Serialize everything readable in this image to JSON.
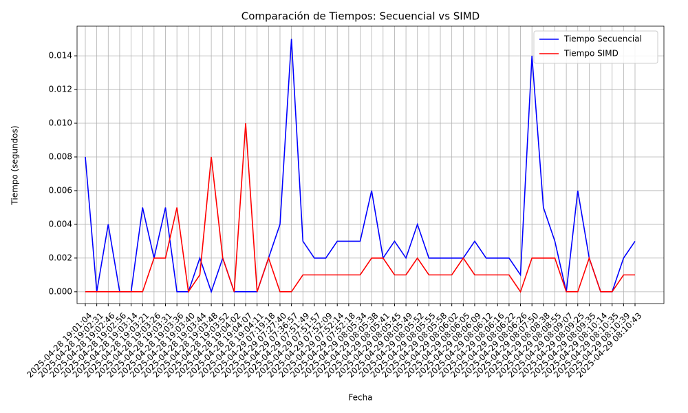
{
  "chart_data": {
    "type": "line",
    "title": "Comparación de Tiempos: Secuencial vs SIMD",
    "x_label": "Fecha",
    "y_label": "Tiempo (segundos)",
    "categories": [
      "2025-04-28 19:01:04",
      "2025-04-28 19:02:31",
      "2025-04-28 19:02:46",
      "2025-04-28 19:02:56",
      "2025-04-28 19:03:14",
      "2025-04-28 19:03:21",
      "2025-04-28 19:03:26",
      "2025-04-28 19:03:31",
      "2025-04-28 19:03:36",
      "2025-04-28 19:03:40",
      "2025-04-28 19:03:44",
      "2025-04-28 19:03:48",
      "2025-04-28 19:03:52",
      "2025-04-28 19:04:02",
      "2025-04-28 19:04:07",
      "2025-04-28 19:04:11",
      "2025-04-29 07:19:18",
      "2025-04-29 07:27:40",
      "2025-04-29 07:36:57",
      "2025-04-29 07:51:49",
      "2025-04-29 07:51:57",
      "2025-04-29 07:52:09",
      "2025-04-29 07:52:14",
      "2025-04-29 07:52:18",
      "2025-04-29 08:05:34",
      "2025-04-29 08:05:38",
      "2025-04-29 08:05:41",
      "2025-04-29 08:05:45",
      "2025-04-29 08:05:49",
      "2025-04-29 08:05:52",
      "2025-04-29 08:05:55",
      "2025-04-29 08:05:58",
      "2025-04-29 08:06:02",
      "2025-04-29 08:06:05",
      "2025-04-29 08:06:09",
      "2025-04-29 08:06:12",
      "2025-04-29 08:06:16",
      "2025-04-29 08:06:22",
      "2025-04-29 08:06:26",
      "2025-04-29 08:07:50",
      "2025-04-29 08:08:38",
      "2025-04-29 08:08:55",
      "2025-04-29 08:09:07",
      "2025-04-29 08:09:25",
      "2025-04-29 08:09:35",
      "2025-04-29 08:10:14",
      "2025-04-29 08:10:35",
      "2025-04-29 08:10:39",
      "2025-04-29 08:10:43"
    ],
    "series": [
      {
        "name": "Tiempo Secuencial",
        "color": "#0000ff",
        "values": [
          0.008,
          0,
          0.004,
          0,
          0,
          0.005,
          0.002,
          0.005,
          0,
          0,
          0.002,
          0,
          0.002,
          0,
          0,
          0,
          0.002,
          0.004,
          0.015,
          0.003,
          0.002,
          0.002,
          0.003,
          0.003,
          0.003,
          0.006,
          0.002,
          0.003,
          0.002,
          0.004,
          0.002,
          0.002,
          0.002,
          0.002,
          0.003,
          0.002,
          0.002,
          0.002,
          0.001,
          0.014,
          0.005,
          0.003,
          0,
          0.006,
          0.002,
          0,
          0,
          0.002,
          0.003
        ]
      },
      {
        "name": "Tiempo SIMD",
        "color": "#ff0000",
        "values": [
          0,
          0,
          0,
          0,
          0,
          0,
          0.002,
          0.002,
          0.005,
          0,
          0.001,
          0.008,
          0.002,
          0,
          0.01,
          0,
          0.002,
          0,
          0,
          0.001,
          0.001,
          0.001,
          0.001,
          0.001,
          0.001,
          0.002,
          0.002,
          0.001,
          0.001,
          0.002,
          0.001,
          0.001,
          0.001,
          0.002,
          0.001,
          0.001,
          0.001,
          0.001,
          0,
          0.002,
          0.002,
          0.002,
          0,
          0,
          0.002,
          0,
          0,
          0.001,
          0.001
        ]
      }
    ],
    "ylim": [
      -0.0007,
      0.01576
    ],
    "yticks": [
      {
        "value": 0,
        "label": "0.000"
      },
      {
        "value": 0.002,
        "label": "0.002"
      },
      {
        "value": 0.004,
        "label": "0.004"
      },
      {
        "value": 0.006,
        "label": "0.006"
      },
      {
        "value": 0.008,
        "label": "0.008"
      },
      {
        "value": 0.01,
        "label": "0.010"
      },
      {
        "value": 0.012,
        "label": "0.012"
      },
      {
        "value": 0.014,
        "label": "0.014"
      }
    ],
    "grid": true,
    "legend": "upper right"
  }
}
